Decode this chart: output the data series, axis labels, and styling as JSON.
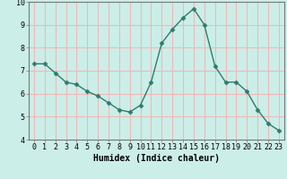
{
  "x": [
    0,
    1,
    2,
    3,
    4,
    5,
    6,
    7,
    8,
    9,
    10,
    11,
    12,
    13,
    14,
    15,
    16,
    17,
    18,
    19,
    20,
    21,
    22,
    23
  ],
  "y": [
    7.3,
    7.3,
    6.9,
    6.5,
    6.4,
    6.1,
    5.9,
    5.6,
    5.3,
    5.2,
    5.5,
    6.5,
    8.2,
    8.8,
    9.3,
    9.7,
    9.0,
    7.2,
    6.5,
    6.5,
    6.1,
    5.3,
    4.7,
    4.4
  ],
  "line_color": "#2e7d6e",
  "marker": "D",
  "marker_size": 2.5,
  "bg_color": "#cceee8",
  "grid_color": "#f0b8b8",
  "axis_color": "#777777",
  "xlabel": "Humidex (Indice chaleur)",
  "xlabel_fontsize": 7,
  "tick_fontsize": 6,
  "ylim": [
    4,
    10
  ],
  "xlim": [
    -0.5,
    23.5
  ],
  "yticks": [
    4,
    5,
    6,
    7,
    8,
    9,
    10
  ],
  "xticks": [
    0,
    1,
    2,
    3,
    4,
    5,
    6,
    7,
    8,
    9,
    10,
    11,
    12,
    13,
    14,
    15,
    16,
    17,
    18,
    19,
    20,
    21,
    22,
    23
  ]
}
